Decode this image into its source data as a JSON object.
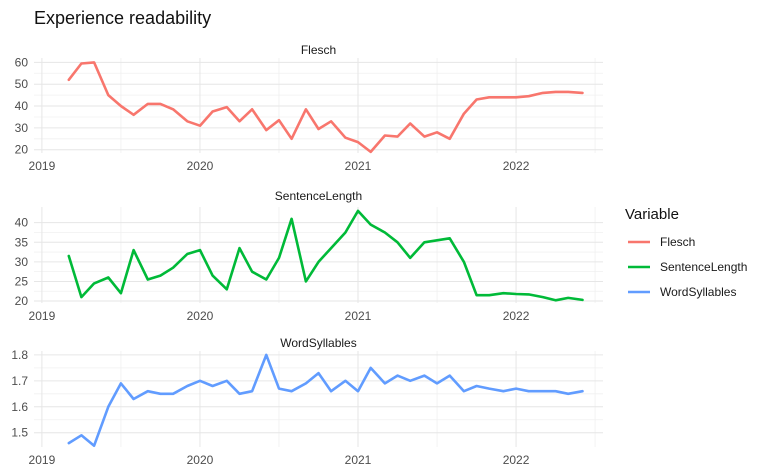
{
  "chart_data": {
    "type": "line",
    "title": "Experience readability",
    "x_tick_labels": [
      "2019",
      "2020",
      "2021",
      "2022"
    ],
    "x_tick_values": [
      2019,
      2020,
      2021,
      2022
    ],
    "xlim": [
      2018.95,
      2022.55
    ],
    "x": [
      2019.17,
      2019.25,
      2019.33,
      2019.42,
      2019.5,
      2019.58,
      2019.67,
      2019.75,
      2019.83,
      2019.92,
      2020.0,
      2020.08,
      2020.17,
      2020.25,
      2020.33,
      2020.42,
      2020.5,
      2020.58,
      2020.67,
      2020.75,
      2020.83,
      2020.92,
      2021.0,
      2021.08,
      2021.17,
      2021.25,
      2021.33,
      2021.42,
      2021.5,
      2021.58,
      2021.67,
      2021.75,
      2021.83,
      2021.92,
      2022.0,
      2022.08,
      2022.17,
      2022.25,
      2022.33,
      2022.42
    ],
    "legend": {
      "title": "Variable",
      "position": "right"
    },
    "grid": true,
    "panels": [
      {
        "strip": "Flesch",
        "color": "#F8766D",
        "ylim": [
          18.5,
          62
        ],
        "y_ticks": [
          20,
          30,
          40,
          50,
          60
        ],
        "values": [
          52,
          59.5,
          60,
          45,
          40,
          36,
          41,
          41,
          38.5,
          33,
          31,
          37.5,
          39.5,
          33,
          38.5,
          29,
          33.5,
          25,
          38.5,
          29.5,
          33,
          25.5,
          23.5,
          19,
          26.5,
          26,
          32,
          26,
          28,
          25,
          36.5,
          43,
          44,
          44,
          44,
          44.5,
          46,
          46.5,
          46.5,
          46
        ]
      },
      {
        "strip": "SentenceLength",
        "color": "#00BA38",
        "ylim": [
          19.5,
          44
        ],
        "y_ticks": [
          20,
          25,
          30,
          35,
          40
        ],
        "values": [
          31.5,
          21,
          24.5,
          26,
          22,
          33,
          25.5,
          26.5,
          28.5,
          32,
          33,
          26.5,
          23,
          33.5,
          27.5,
          25.5,
          31,
          41,
          25,
          30,
          33.5,
          37.5,
          43,
          39.5,
          37.5,
          35,
          31,
          35,
          35.5,
          36,
          30,
          21.5,
          21.5,
          22,
          21.8,
          21.7,
          21,
          20.2,
          20.8,
          20.3
        ]
      },
      {
        "strip": "WordSyllables",
        "color": "#619CFF",
        "ylim": [
          1.445,
          1.815
        ],
        "y_ticks": [
          1.5,
          1.6,
          1.7,
          1.8
        ],
        "values": [
          1.46,
          1.49,
          1.45,
          1.6,
          1.69,
          1.63,
          1.66,
          1.65,
          1.65,
          1.68,
          1.7,
          1.68,
          1.7,
          1.65,
          1.66,
          1.8,
          1.67,
          1.66,
          1.69,
          1.73,
          1.66,
          1.7,
          1.66,
          1.75,
          1.69,
          1.72,
          1.7,
          1.72,
          1.69,
          1.72,
          1.66,
          1.68,
          1.67,
          1.66,
          1.67,
          1.66,
          1.66,
          1.66,
          1.65,
          1.66
        ]
      }
    ]
  }
}
